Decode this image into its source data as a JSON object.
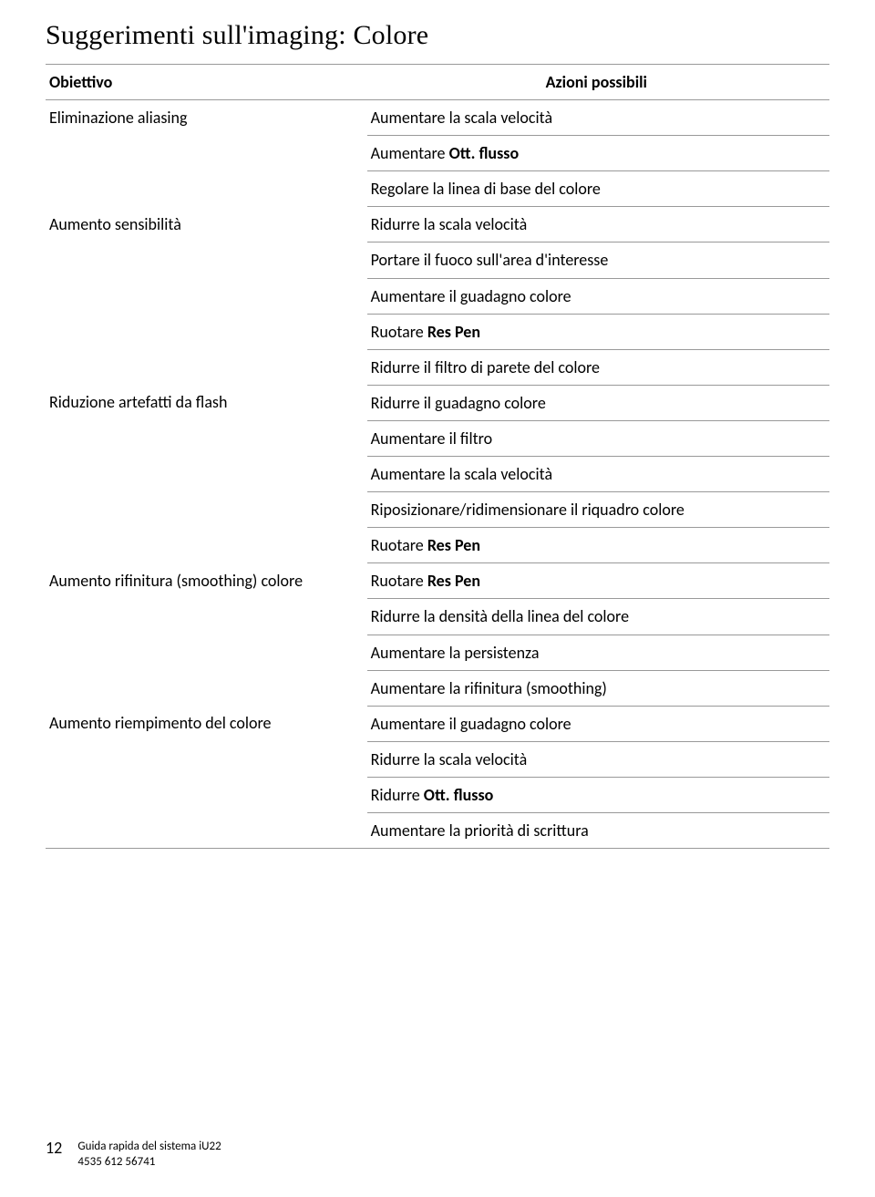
{
  "title": "Suggerimenti sull'imaging: Colore",
  "header": {
    "goal": "Obiettivo",
    "actions": "Azioni possibili"
  },
  "groups": [
    {
      "goal": "Eliminazione aliasing",
      "actions": [
        "Aumentare la scala velocità",
        "Aumentare <b>Ott. flusso</b>",
        "Regolare la linea di base del colore"
      ]
    },
    {
      "goal": "Aumento sensibilità",
      "actions": [
        "Ridurre la scala velocità",
        "Portare il fuoco sull'area d'interesse",
        "Aumentare il guadagno colore",
        "Ruotare <b>Res Pen</b>",
        "Ridurre il filtro di parete del colore"
      ]
    },
    {
      "goal": "Riduzione artefatti da flash",
      "actions": [
        "Ridurre il guadagno colore",
        "Aumentare il filtro",
        "Aumentare la scala velocità",
        "Riposizionare/ridimensionare il riquadro colore",
        "Ruotare <b>Res Pen</b>"
      ]
    },
    {
      "goal": "Aumento rifinitura (smoothing) colore",
      "actions": [
        "Ruotare <b>Res Pen</b>",
        "Ridurre la densità della linea del colore",
        "Aumentare la persistenza",
        "Aumentare la rifinitura (smoothing)"
      ]
    },
    {
      "goal": "Aumento riempimento del colore",
      "actions": [
        "Aumentare il guadagno colore",
        "Ridurre la scala velocità",
        "Ridurre <b>Ott. flusso</b>",
        "Aumentare la priorità di scrittura"
      ]
    }
  ],
  "footer": {
    "page": "12",
    "line1": "Guida rapida del sistema iU22",
    "line2": "4535 612 56741"
  }
}
